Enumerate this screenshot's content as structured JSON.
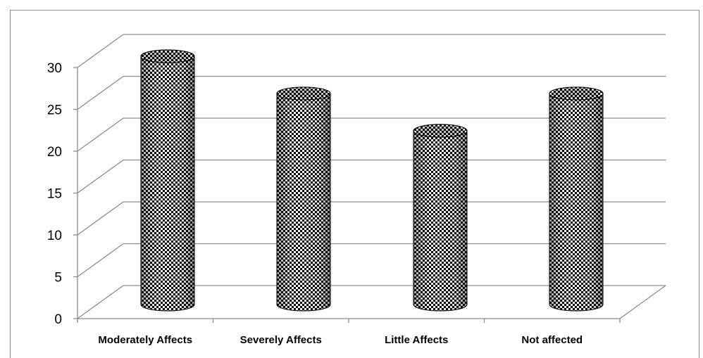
{
  "chart_data": {
    "type": "bar",
    "style": "3d-cylinder",
    "categories": [
      "Moderately Affects",
      "Severely Affects",
      "Little Affects",
      "Not affected"
    ],
    "values": [
      30,
      25.5,
      21,
      25.5
    ],
    "y_ticks": [
      "0",
      "5",
      "10",
      "15",
      "20",
      "25",
      "30"
    ],
    "ylim": [
      0,
      30
    ],
    "grid": true,
    "legend": "none",
    "fill_pattern": "black-white checkered",
    "colors": {
      "grid": "#8c8c8c",
      "bar_dark": "#000000",
      "bar_light": "#ffffff"
    }
  }
}
